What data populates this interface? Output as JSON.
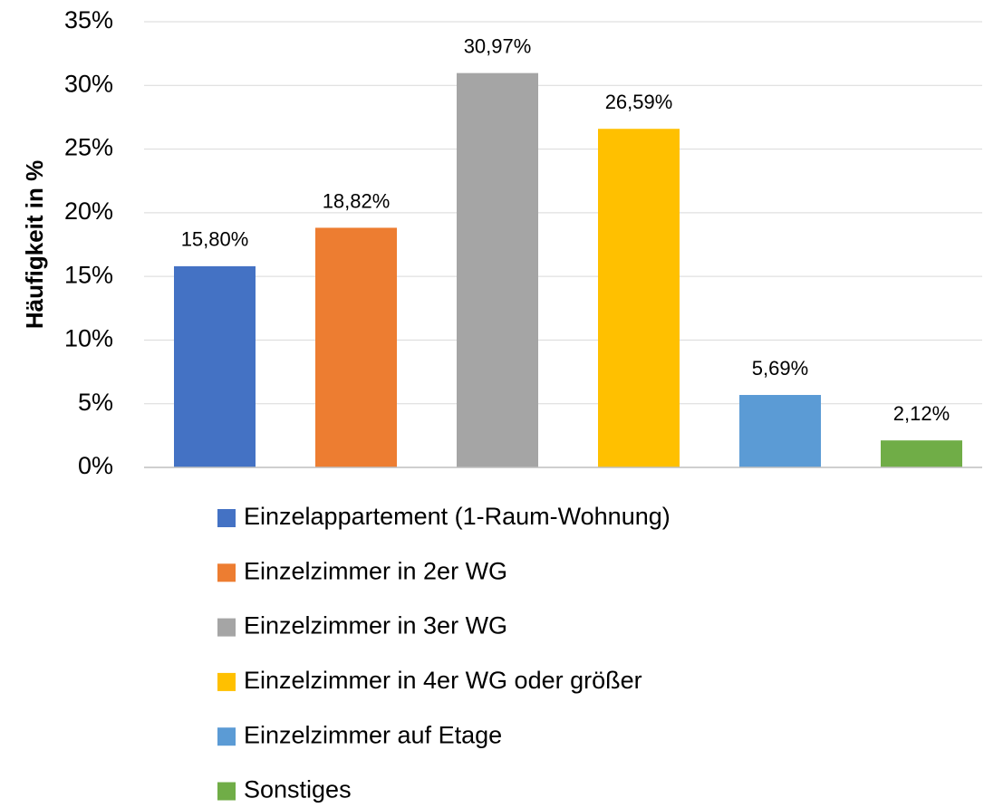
{
  "chart_data": {
    "type": "bar",
    "y_label": "Häufigkeit in %",
    "ylim": [
      0,
      35
    ],
    "yticks": [
      {
        "value": 0,
        "label": "0%"
      },
      {
        "value": 5,
        "label": "5%"
      },
      {
        "value": 10,
        "label": "10%"
      },
      {
        "value": 15,
        "label": "15%"
      },
      {
        "value": 20,
        "label": "20%"
      },
      {
        "value": 25,
        "label": "25%"
      },
      {
        "value": 30,
        "label": "30%"
      },
      {
        "value": 35,
        "label": "35%"
      }
    ],
    "grid": true,
    "legend": "bottom",
    "series": [
      {
        "name": "Einzelappartement (1-Raum-Wohnung)",
        "color": "#4472c4",
        "values": [
          15.8
        ],
        "value_labels": [
          "15,80%"
        ]
      },
      {
        "name": "Einzelzimmer in 2er WG",
        "color": "#ed7d31",
        "values": [
          18.82
        ],
        "value_labels": [
          "18,82%"
        ]
      },
      {
        "name": "Einzelzimmer in 3er WG",
        "color": "#a5a5a5",
        "values": [
          30.97
        ],
        "value_labels": [
          "30,97%"
        ]
      },
      {
        "name": "Einzelzimmer in 4er WG oder größer",
        "color": "#ffc000",
        "values": [
          26.59
        ],
        "value_labels": [
          "26,59%"
        ]
      },
      {
        "name": "Einzelzimmer auf Etage",
        "color": "#5b9bd5",
        "values": [
          5.69
        ],
        "value_labels": [
          "5,69%"
        ]
      },
      {
        "name": "Sonstiges",
        "color": "#70ad47",
        "values": [
          2.12
        ],
        "value_labels": [
          "2,12%"
        ]
      }
    ]
  }
}
